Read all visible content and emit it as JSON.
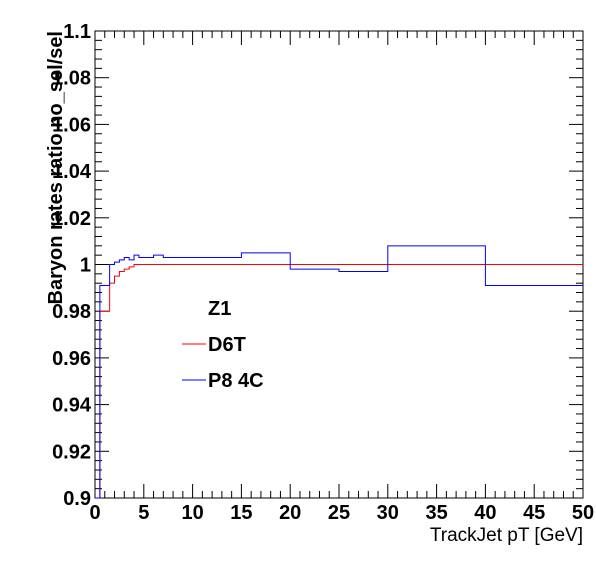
{
  "chart_data": {
    "type": "line",
    "xlabel": "TrackJet pT [GeV]",
    "ylabel": "Baryon rates ratio no_sel/sel",
    "xlim": [
      0,
      50
    ],
    "ylim": [
      0.9,
      1.1
    ],
    "x_ticks": [
      "0",
      "5",
      "10",
      "15",
      "20",
      "25",
      "30",
      "35",
      "40",
      "45",
      "50"
    ],
    "y_ticks": [
      "0.9",
      "0.92",
      "0.94",
      "0.96",
      "0.98",
      "1",
      "1.02",
      "1.04",
      "1.06",
      "1.08",
      "1.1"
    ],
    "grid": false,
    "legend_position": "center-left",
    "series": [
      {
        "name": "Z1",
        "color": "#ffffff",
        "edges": [],
        "values": []
      },
      {
        "name": "D6T",
        "color": "#ff0000",
        "edges": [
          0,
          0.5,
          1.0,
          1.5,
          2.0,
          2.5,
          3.0,
          3.5,
          4.0,
          4.5,
          5.0,
          6.0,
          7.0,
          8.0,
          10.0,
          15.0,
          20.0,
          25.0,
          30.0,
          40.0,
          50.0
        ],
        "values": [
          0.9,
          0.98,
          0.98,
          0.992,
          0.995,
          0.997,
          0.998,
          0.999,
          1.0,
          1.0,
          1.0,
          1.0,
          1.0,
          1.0,
          1.0,
          1.0,
          1.0,
          1.0,
          1.0,
          1.0
        ]
      },
      {
        "name": "P8 4C",
        "color": "#0000ff",
        "edges": [
          0,
          0.5,
          1.0,
          1.5,
          2.0,
          2.5,
          3.0,
          3.5,
          4.0,
          4.5,
          5.0,
          6.0,
          7.0,
          8.0,
          10.0,
          15.0,
          20.0,
          25.0,
          30.0,
          40.0,
          50.0
        ],
        "values": [
          0.9,
          0.991,
          0.991,
          1.0,
          1.001,
          1.002,
          1.003,
          1.002,
          1.004,
          1.003,
          1.003,
          1.004,
          1.003,
          1.003,
          1.003,
          1.005,
          0.998,
          0.997,
          1.008,
          0.991
        ]
      }
    ],
    "reference_line": 1.0
  }
}
